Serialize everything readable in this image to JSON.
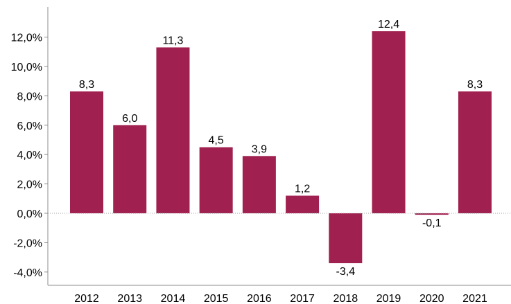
{
  "chart_data": {
    "type": "bar",
    "categories": [
      "2012",
      "2013",
      "2014",
      "2015",
      "2016",
      "2017",
      "2018",
      "2019",
      "2020",
      "2021"
    ],
    "values": [
      8.3,
      6.0,
      11.3,
      4.5,
      3.9,
      1.2,
      -3.4,
      12.4,
      -0.1,
      8.3
    ],
    "data_labels": [
      "8,3",
      "6,0",
      "11,3",
      "4,5",
      "3,9",
      "1,2",
      "-3,4",
      "12,4",
      "-0,1",
      "8,3"
    ],
    "y_ticks": [
      -4,
      -2,
      0,
      2,
      4,
      6,
      8,
      10,
      12
    ],
    "y_tick_labels": [
      "-4,0%",
      "-2,0%",
      "0,0%",
      "2,0%",
      "4,0%",
      "6,0%",
      "8,0%",
      "10,0%",
      "12,0%"
    ],
    "ylim": [
      -4.6,
      14.0
    ],
    "title": "",
    "xlabel": "",
    "ylabel": "",
    "grid": false,
    "bar_color": "#a0204f"
  }
}
